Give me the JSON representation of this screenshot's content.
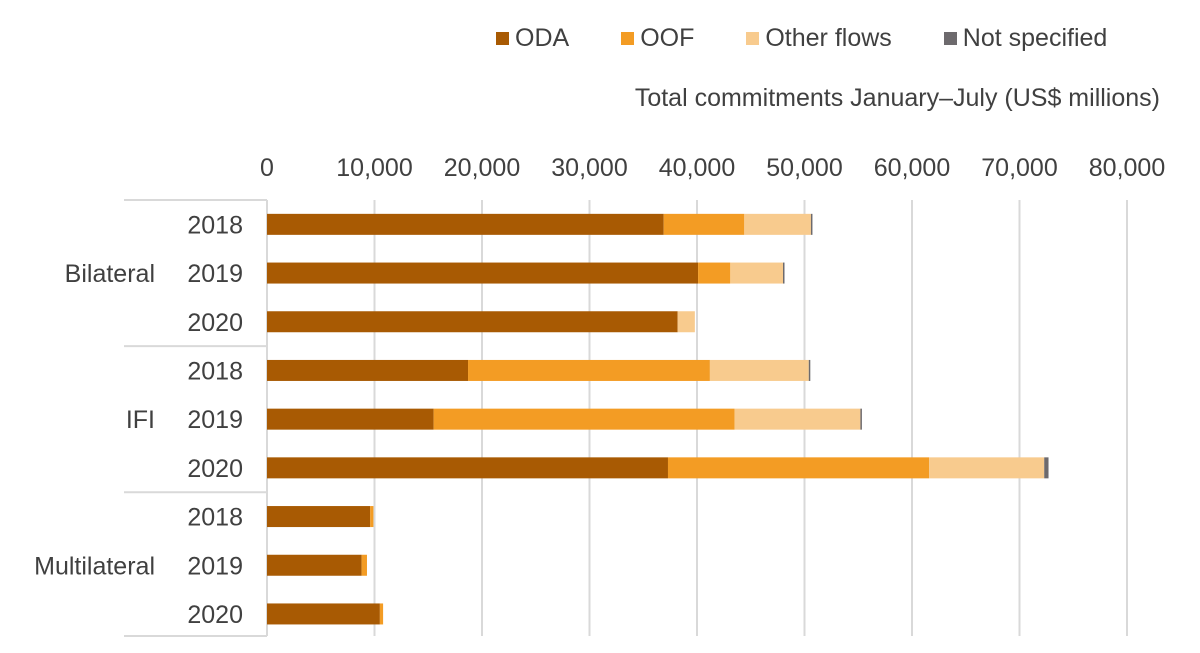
{
  "chart_data": {
    "type": "bar",
    "orientation": "horizontal",
    "stacked": true,
    "xlabel": "Total commitments January–July (US$ millions)",
    "xlim": [
      0,
      80000
    ],
    "xticks": [
      0,
      10000,
      20000,
      30000,
      40000,
      50000,
      60000,
      70000,
      80000
    ],
    "xtick_labels": [
      "0",
      "10,000",
      "20,000",
      "30,000",
      "40,000",
      "50,000",
      "60,000",
      "70,000",
      "80,000"
    ],
    "grid": true,
    "legend_position": "top",
    "groups": [
      {
        "name": "Bilateral",
        "categories": [
          "2018",
          "2019",
          "2020"
        ]
      },
      {
        "name": "IFI",
        "categories": [
          "2018",
          "2019",
          "2020"
        ]
      },
      {
        "name": "Multilateral",
        "categories": [
          "2018",
          "2019",
          "2020"
        ]
      }
    ],
    "series": [
      {
        "name": "ODA",
        "color": "#A85A03",
        "values": [
          36900,
          40100,
          38200,
          18700,
          15500,
          37300,
          9600,
          8800,
          10500
        ]
      },
      {
        "name": "OOF",
        "color": "#F39C24",
        "values": [
          7500,
          3000,
          0,
          22500,
          28000,
          24300,
          300,
          500,
          300
        ]
      },
      {
        "name": "Other flows",
        "color": "#F8CB8E",
        "values": [
          6200,
          4900,
          1600,
          9200,
          11700,
          10700,
          0,
          0,
          0
        ]
      },
      {
        "name": "Not specified",
        "color": "#6D6A6D",
        "values": [
          100,
          100,
          0,
          100,
          100,
          400,
          0,
          0,
          0
        ]
      }
    ]
  }
}
